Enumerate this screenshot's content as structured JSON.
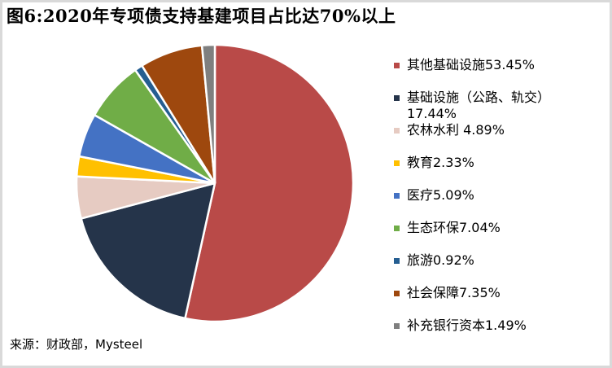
{
  "title": "图6:2020年专项债支持基建项目占比达70%以上",
  "source": "来源：财政部，Mysteel",
  "chart_data": {
    "type": "pie",
    "title": "图6:2020年专项债支持基建项目占比达70%以上",
    "start_angle": "top, clockwise",
    "legend_position": "right",
    "slices": [
      {
        "label": "其他基础设施53.45%",
        "name": "其他基础设施",
        "value": 53.45,
        "color": "#B94A48"
      },
      {
        "label": "基础设施（公路、轨交）17.44%",
        "name": "基础设施（公路、轨交）",
        "value": 17.44,
        "color": "#25344A"
      },
      {
        "label": "农林水利 4.89%",
        "name": "农林水利",
        "value": 4.89,
        "color": "#E6CBC2"
      },
      {
        "label": "教育2.33%",
        "name": "教育",
        "value": 2.33,
        "color": "#FFC000"
      },
      {
        "label": "医疗5.09%",
        "name": "医疗",
        "value": 5.09,
        "color": "#4472C4"
      },
      {
        "label": "生态环保7.04%",
        "name": "生态环保",
        "value": 7.04,
        "color": "#70AD47"
      },
      {
        "label": "旅游0.92%",
        "name": "旅游",
        "value": 0.92,
        "color": "#255E91"
      },
      {
        "label": "社会保障7.35%",
        "name": "社会保障",
        "value": 7.35,
        "color": "#9E480E"
      },
      {
        "label": "补充银行资本1.49%",
        "name": "补充银行资本",
        "value": 1.49,
        "color": "#7F7F7F"
      }
    ]
  }
}
